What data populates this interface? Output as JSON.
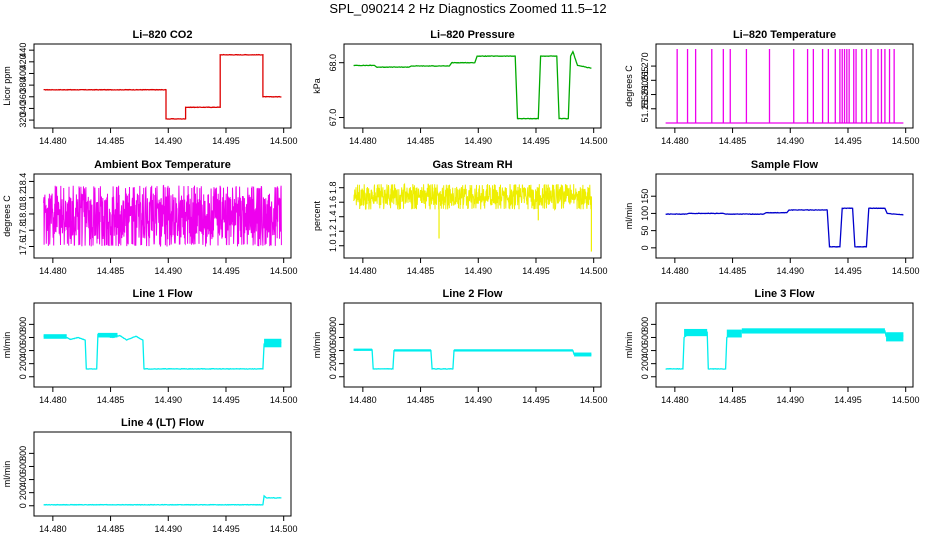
{
  "figure": {
    "title": "SPL_090214  2 Hz Diagnostics Zoomed 11.5–12"
  },
  "chart_data": [
    {
      "type": "line",
      "title": "Li–820 CO2",
      "xlabel": "",
      "ylabel": "Licor ppm",
      "color": "#dd0000",
      "xlim": [
        14.4788,
        14.5002
      ],
      "xticks": [
        14.48,
        14.485,
        14.49,
        14.495,
        14.5
      ],
      "xtick_labels": [
        "14.480",
        "14.485",
        "14.490",
        "14.495",
        "14.500"
      ],
      "ylim": [
        315,
        442
      ],
      "yticks": [
        320,
        340,
        360,
        380,
        400,
        420,
        440
      ],
      "ytick_labels": [
        "320",
        "340",
        "360",
        "380",
        "400",
        "420",
        "440"
      ],
      "series": [
        {
          "x": [
            14.4792,
            14.486,
            14.4898,
            14.4898,
            14.4915,
            14.4915,
            14.4945,
            14.4945,
            14.4982,
            14.4982,
            14.4998
          ],
          "y": [
            372,
            372,
            372,
            322,
            322,
            342,
            342,
            432,
            432,
            360,
            360
          ]
        }
      ]
    },
    {
      "type": "line",
      "title": "Li–820 Pressure",
      "xlabel": "",
      "ylabel": "kPa",
      "color": "#00aa00",
      "xlim": [
        14.4788,
        14.5002
      ],
      "xticks": [
        14.48,
        14.485,
        14.49,
        14.495,
        14.5
      ],
      "xtick_labels": [
        "14.480",
        "14.485",
        "14.490",
        "14.495",
        "14.500"
      ],
      "ylim": [
        66.9,
        68.25
      ],
      "yticks": [
        67.0,
        68.0
      ],
      "ytick_labels": [
        "67.0",
        "68.0"
      ],
      "series": [
        {
          "x": [
            14.4792,
            14.481,
            14.4812,
            14.484,
            14.4842,
            14.4875,
            14.4877,
            14.4897,
            14.4899,
            14.4932,
            14.4934,
            14.4952,
            14.4954,
            14.4968,
            14.497,
            14.4978,
            14.498,
            14.4982,
            14.4986,
            14.4998
          ],
          "y": [
            67.95,
            67.95,
            67.92,
            67.92,
            67.94,
            67.94,
            68.0,
            68.0,
            68.12,
            68.12,
            66.98,
            66.98,
            68.12,
            68.12,
            66.98,
            66.98,
            68.12,
            68.2,
            67.95,
            67.9
          ]
        }
      ]
    },
    {
      "type": "line",
      "title": "Li–820 Temperature",
      "xlabel": "",
      "ylabel": "degrees C",
      "color": "#ee00ee",
      "xlim": [
        14.4788,
        14.5002
      ],
      "xticks": [
        14.48,
        14.485,
        14.49,
        14.495,
        14.5
      ],
      "xtick_labels": [
        "14.480",
        "14.485",
        "14.490",
        "14.495",
        "14.500"
      ],
      "ylim": [
        51.25,
        51.276
      ],
      "yticks": [
        51.255,
        51.26,
        51.265,
        51.27
      ],
      "ytick_labels": [
        "51.255",
        "51.260",
        "51.265",
        "51.270"
      ],
      "baseline": 51.25,
      "spike_value": 51.276,
      "spikes": [
        14.4802,
        14.4811,
        14.4818,
        14.4832,
        14.4842,
        14.4848,
        14.4862,
        14.4882,
        14.4903,
        14.4915,
        14.492,
        14.4928,
        14.4933,
        14.4939,
        14.4943,
        14.4945,
        14.4947,
        14.4949,
        14.4951,
        14.4955,
        14.4957,
        14.4962,
        14.4966,
        14.497,
        14.4976,
        14.4979,
        14.4982,
        14.4986,
        14.499
      ]
    },
    {
      "type": "line",
      "title": "Ambient Box Temperature",
      "xlabel": "",
      "ylabel": "degrees C",
      "color": "#ee00ee",
      "xlim": [
        14.4788,
        14.5002
      ],
      "xticks": [
        14.48,
        14.485,
        14.49,
        14.495,
        14.5
      ],
      "xtick_labels": [
        "14.480",
        "14.485",
        "14.490",
        "14.495",
        "14.500"
      ],
      "ylim": [
        17.52,
        18.43
      ],
      "yticks": [
        17.6,
        17.8,
        18.0,
        18.2,
        18.4
      ],
      "ytick_labels": [
        "17.6",
        "17.8",
        "18.0",
        "18.2",
        "18.4"
      ],
      "noise": {
        "x_start": 14.4792,
        "x_end": 14.4998,
        "center": 17.97,
        "low": 17.6,
        "high": 18.35
      }
    },
    {
      "type": "line",
      "title": "Gas Stream RH",
      "xlabel": "",
      "ylabel": "percent",
      "color": "#eeee00",
      "xlim": [
        14.4788,
        14.5002
      ],
      "xticks": [
        14.48,
        14.485,
        14.49,
        14.495,
        14.5
      ],
      "xtick_labels": [
        "14.480",
        "14.485",
        "14.490",
        "14.495",
        "14.500"
      ],
      "ylim": [
        0.9,
        1.92
      ],
      "yticks": [
        1.0,
        1.2,
        1.4,
        1.6,
        1.8
      ],
      "ytick_labels": [
        "1.0",
        "1.2",
        "1.4",
        "1.6",
        "1.8"
      ],
      "noise": {
        "x_start": 14.4792,
        "x_end": 14.4998,
        "center": 1.68,
        "low": 1.5,
        "high": 1.85
      },
      "dips": [
        {
          "x": 14.4866,
          "y": 1.1
        },
        {
          "x": 14.4952,
          "y": 1.35
        },
        {
          "x": 14.4998,
          "y": 0.92
        }
      ]
    },
    {
      "type": "line",
      "title": "Sample Flow",
      "xlabel": "",
      "ylabel": "ml/min",
      "color": "#0000cc",
      "xlim": [
        14.4788,
        14.5002
      ],
      "xticks": [
        14.48,
        14.485,
        14.49,
        14.495,
        14.5
      ],
      "xtick_labels": [
        "14.480",
        "14.485",
        "14.490",
        "14.495",
        "14.500"
      ],
      "ylim": [
        -15,
        200
      ],
      "yticks": [
        0,
        50,
        100,
        150
      ],
      "ytick_labels": [
        "0",
        "50",
        "100",
        "150"
      ],
      "series": [
        {
          "x": [
            14.4792,
            14.481,
            14.4812,
            14.4842,
            14.4844,
            14.4877,
            14.4879,
            14.4897,
            14.4899,
            14.4932,
            14.4934,
            14.4943,
            14.4945,
            14.4954,
            14.4956,
            14.4966,
            14.4968,
            14.4982,
            14.4984,
            14.4998
          ],
          "y": [
            98,
            98,
            100,
            100,
            98,
            98,
            102,
            102,
            110,
            110,
            3,
            3,
            115,
            115,
            3,
            3,
            115,
            115,
            100,
            96
          ]
        }
      ]
    },
    {
      "type": "line",
      "title": "Line 1 Flow",
      "xlabel": "",
      "ylabel": "ml/min",
      "color": "#00eeee",
      "xlim": [
        14.4788,
        14.5002
      ],
      "xticks": [
        14.48,
        14.485,
        14.49,
        14.495,
        14.5
      ],
      "xtick_labels": [
        "14.480",
        "14.485",
        "14.490",
        "14.495",
        "14.500"
      ],
      "ylim": [
        -80,
        1050
      ],
      "yticks": [
        0,
        200,
        400,
        600,
        800
      ],
      "ytick_labels": [
        "0",
        "200",
        "400",
        "600",
        "800"
      ],
      "series": [
        {
          "x": [
            14.4792,
            14.4812,
            14.4815,
            14.4822,
            14.4828,
            14.4829,
            14.4838,
            14.4839,
            14.4852,
            14.4858,
            14.4864,
            14.4872,
            14.4878,
            14.4879,
            14.4982,
            14.4983,
            14.4998
          ],
          "y": [
            620,
            600,
            570,
            600,
            560,
            120,
            120,
            640,
            600,
            630,
            560,
            620,
            560,
            120,
            120,
            500,
            520
          ]
        }
      ],
      "bands": [
        {
          "x0": 14.4792,
          "x1": 14.4812,
          "y0": 580,
          "y1": 650
        },
        {
          "x0": 14.4839,
          "x1": 14.4856,
          "y0": 600,
          "y1": 670
        },
        {
          "x0": 14.4983,
          "x1": 14.4998,
          "y0": 450,
          "y1": 580
        }
      ]
    },
    {
      "type": "line",
      "title": "Line 2 Flow",
      "xlabel": "",
      "ylabel": "ml/min",
      "color": "#00eeee",
      "xlim": [
        14.4788,
        14.5002
      ],
      "xticks": [
        14.48,
        14.485,
        14.49,
        14.495,
        14.5
      ],
      "xtick_labels": [
        "14.480",
        "14.485",
        "14.490",
        "14.495",
        "14.500"
      ],
      "ylim": [
        -80,
        1050
      ],
      "yticks": [
        0,
        200,
        400,
        600,
        800
      ],
      "ytick_labels": [
        "0",
        "200",
        "400",
        "600",
        "800"
      ],
      "series": [
        {
          "x": [
            14.4792,
            14.4808,
            14.4809,
            14.4826,
            14.4827,
            14.4859,
            14.486,
            14.4878,
            14.4879,
            14.4982,
            14.4983,
            14.4998
          ],
          "y": [
            410,
            410,
            120,
            120,
            400,
            400,
            120,
            120,
            400,
            400,
            340,
            340
          ]
        }
      ],
      "bands": [
        {
          "x0": 14.4792,
          "x1": 14.4808,
          "y0": 395,
          "y1": 430
        },
        {
          "x0": 14.4827,
          "x1": 14.4859,
          "y0": 385,
          "y1": 420
        },
        {
          "x0": 14.4879,
          "x1": 14.4982,
          "y0": 385,
          "y1": 420
        },
        {
          "x0": 14.4983,
          "x1": 14.4998,
          "y0": 310,
          "y1": 370
        }
      ]
    },
    {
      "type": "line",
      "title": "Line 3 Flow",
      "xlabel": "",
      "ylabel": "ml/min",
      "color": "#00eeee",
      "xlim": [
        14.4788,
        14.5002
      ],
      "xticks": [
        14.48,
        14.485,
        14.49,
        14.495,
        14.5
      ],
      "xtick_labels": [
        "14.480",
        "14.485",
        "14.490",
        "14.495",
        "14.500"
      ],
      "ylim": [
        -80,
        1050
      ],
      "yticks": [
        0,
        200,
        400,
        600,
        800
      ],
      "ytick_labels": [
        "0",
        "200",
        "400",
        "600",
        "800"
      ],
      "series": [
        {
          "x": [
            14.4792,
            14.4807,
            14.4808,
            14.4812,
            14.4828,
            14.4829,
            14.4844,
            14.4845,
            14.4851,
            14.4858,
            14.4982,
            14.4983,
            14.4998
          ],
          "y": [
            120,
            120,
            600,
            660,
            680,
            120,
            120,
            600,
            680,
            700,
            700,
            620,
            620
          ]
        }
      ],
      "bands": [
        {
          "x0": 14.4808,
          "x1": 14.4828,
          "y0": 620,
          "y1": 730
        },
        {
          "x0": 14.4845,
          "x1": 14.4858,
          "y0": 600,
          "y1": 720
        },
        {
          "x0": 14.4858,
          "x1": 14.4982,
          "y0": 660,
          "y1": 740
        },
        {
          "x0": 14.4983,
          "x1": 14.4998,
          "y0": 540,
          "y1": 680
        }
      ]
    },
    {
      "type": "line",
      "title": "Line 4 (LT) Flow",
      "xlabel": "",
      "ylabel": "ml/min",
      "color": "#00eeee",
      "xlim": [
        14.4788,
        14.5002
      ],
      "xticks": [
        14.48,
        14.485,
        14.49,
        14.495,
        14.5
      ],
      "xtick_labels": [
        "14.480",
        "14.485",
        "14.490",
        "14.495",
        "14.500"
      ],
      "ylim": [
        -80,
        1050
      ],
      "yticks": [
        0,
        200,
        400,
        600,
        800
      ],
      "ytick_labels": [
        "0",
        "200",
        "400",
        "600",
        "800"
      ],
      "series": [
        {
          "x": [
            14.4792,
            14.4982,
            14.4983,
            14.4985,
            14.4998
          ],
          "y": [
            15,
            15,
            150,
            120,
            120
          ]
        }
      ]
    }
  ]
}
